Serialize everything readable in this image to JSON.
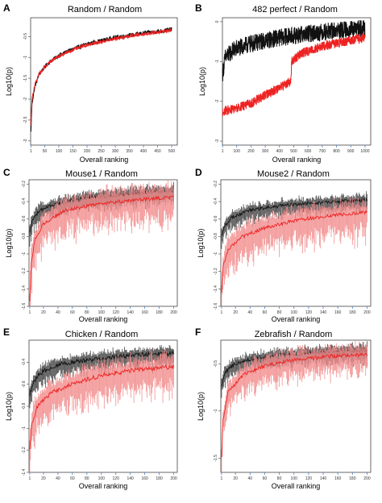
{
  "colors": {
    "random_series": "#111111",
    "query_series": "#ee2222",
    "query_band": "#f28a8a",
    "random_band": "#4a4a4a",
    "axis_tick_blue": "#4a7fd0"
  },
  "chart_data": [
    {
      "panel": "A",
      "type": "line",
      "title": "Random / Random",
      "xlabel": "Overall ranking",
      "ylabel": "Log10(p)",
      "xlim": [
        0,
        520
      ],
      "ylim": [
        -3.1,
        -0.05
      ],
      "xticks": [
        1,
        50,
        100,
        150,
        200,
        250,
        300,
        350,
        400,
        450,
        500
      ],
      "yticks": [
        -3,
        -2.5,
        -2,
        -1.5,
        -1,
        -0.5
      ],
      "ytick_labels": [
        "-3",
        "-2.5",
        "-2",
        "-1.5",
        "-1",
        "-0.5"
      ],
      "n": 500,
      "series": [
        {
          "role": "random",
          "values": [
            {
              "x": 1,
              "y": -2.8
            },
            {
              "x": 5,
              "y": -2.1
            },
            {
              "x": 15,
              "y": -1.7
            },
            {
              "x": 30,
              "y": -1.4
            },
            {
              "x": 60,
              "y": -1.15
            },
            {
              "x": 100,
              "y": -0.95
            },
            {
              "x": 150,
              "y": -0.8
            },
            {
              "x": 200,
              "y": -0.68
            },
            {
              "x": 300,
              "y": -0.52
            },
            {
              "x": 400,
              "y": -0.42
            },
            {
              "x": 500,
              "y": -0.33
            }
          ],
          "noise": 0.05
        },
        {
          "role": "query",
          "values": [
            {
              "x": 1,
              "y": -2.6
            },
            {
              "x": 5,
              "y": -2.0
            },
            {
              "x": 15,
              "y": -1.65
            },
            {
              "x": 30,
              "y": -1.4
            },
            {
              "x": 60,
              "y": -1.15
            },
            {
              "x": 100,
              "y": -0.97
            },
            {
              "x": 150,
              "y": -0.82
            },
            {
              "x": 200,
              "y": -0.7
            },
            {
              "x": 300,
              "y": -0.55
            },
            {
              "x": 400,
              "y": -0.44
            },
            {
              "x": 500,
              "y": -0.35
            }
          ],
          "noise": 0.04
        }
      ]
    },
    {
      "panel": "B",
      "type": "line",
      "title": "482 perfect / Random",
      "xlabel": "Overall ranking",
      "ylabel": "Log10(p)",
      "xlim": [
        0,
        1040
      ],
      "ylim": [
        -3.1,
        0.1
      ],
      "xticks": [
        1,
        100,
        200,
        300,
        400,
        500,
        600,
        700,
        800,
        900,
        1000
      ],
      "yticks": [
        -3,
        -2,
        -1,
        0
      ],
      "ytick_labels": [
        "-3",
        "-2",
        "-1",
        "0"
      ],
      "n": 1000,
      "series": [
        {
          "role": "random",
          "values": [
            {
              "x": 1,
              "y": -1.3
            },
            {
              "x": 20,
              "y": -0.9
            },
            {
              "x": 80,
              "y": -0.7
            },
            {
              "x": 200,
              "y": -0.55
            },
            {
              "x": 400,
              "y": -0.4
            },
            {
              "x": 600,
              "y": -0.3
            },
            {
              "x": 800,
              "y": -0.22
            },
            {
              "x": 1000,
              "y": -0.17
            }
          ],
          "noise": 0.22
        },
        {
          "role": "query",
          "values": [
            {
              "x": 1,
              "y": -2.25
            },
            {
              "x": 100,
              "y": -2.18
            },
            {
              "x": 200,
              "y": -2.05
            },
            {
              "x": 300,
              "y": -1.85
            },
            {
              "x": 400,
              "y": -1.65
            },
            {
              "x": 480,
              "y": -1.5
            },
            {
              "x": 485,
              "y": -1.0
            },
            {
              "x": 550,
              "y": -0.8
            },
            {
              "x": 700,
              "y": -0.62
            },
            {
              "x": 850,
              "y": -0.5
            },
            {
              "x": 1000,
              "y": -0.4
            }
          ],
          "noise": 0.12
        }
      ]
    },
    {
      "panel": "C",
      "type": "line",
      "title": "Mouse1 / Random",
      "xlabel": "Overall ranking",
      "ylabel": "Log10(p)",
      "xlim": [
        0,
        205
      ],
      "ylim": [
        -1.6,
        -0.15
      ],
      "xticks": [
        1,
        20,
        40,
        60,
        80,
        100,
        120,
        140,
        160,
        180,
        200
      ],
      "yticks": [
        -1.6,
        -1.4,
        -1.2,
        -1.0,
        -0.8,
        -0.6,
        -0.4,
        -0.2
      ],
      "ytick_labels": [
        "-1.6",
        "-1.4",
        "-1.2",
        "-1",
        "-0.8",
        "-0.6",
        "-0.4",
        "-0.2"
      ],
      "n": 200,
      "bands": true,
      "series": [
        {
          "role": "random",
          "values": [
            {
              "x": 1,
              "y": -0.75
            },
            {
              "x": 5,
              "y": -0.6
            },
            {
              "x": 15,
              "y": -0.5
            },
            {
              "x": 40,
              "y": -0.42
            },
            {
              "x": 80,
              "y": -0.36
            },
            {
              "x": 120,
              "y": -0.33
            },
            {
              "x": 160,
              "y": -0.3
            },
            {
              "x": 200,
              "y": -0.28
            }
          ],
          "spread": 0.15
        },
        {
          "role": "query",
          "values": [
            {
              "x": 1,
              "y": -1.55
            },
            {
              "x": 3,
              "y": -1.1
            },
            {
              "x": 8,
              "y": -0.85
            },
            {
              "x": 20,
              "y": -0.65
            },
            {
              "x": 50,
              "y": -0.5
            },
            {
              "x": 100,
              "y": -0.42
            },
            {
              "x": 150,
              "y": -0.38
            },
            {
              "x": 200,
              "y": -0.35
            }
          ],
          "spread": 0.3
        }
      ]
    },
    {
      "panel": "D",
      "type": "line",
      "title": "Mouse2 / Random",
      "xlabel": "Overall ranking",
      "ylabel": "Log10(p)",
      "xlim": [
        0,
        205
      ],
      "ylim": [
        -1.6,
        -0.15
      ],
      "xticks": [
        1,
        20,
        40,
        60,
        80,
        100,
        120,
        140,
        160,
        180,
        200
      ],
      "yticks": [
        -1.6,
        -1.4,
        -1.2,
        -1.0,
        -0.8,
        -0.6,
        -0.4,
        -0.2
      ],
      "ytick_labels": [
        "-1.6",
        "-1.4",
        "-1.2",
        "-1",
        "-0.8",
        "-0.6",
        "-0.4",
        "-0.2"
      ],
      "n": 200,
      "bands": true,
      "series": [
        {
          "role": "random",
          "values": [
            {
              "x": 1,
              "y": -0.8
            },
            {
              "x": 5,
              "y": -0.68
            },
            {
              "x": 15,
              "y": -0.58
            },
            {
              "x": 40,
              "y": -0.5
            },
            {
              "x": 80,
              "y": -0.45
            },
            {
              "x": 120,
              "y": -0.42
            },
            {
              "x": 160,
              "y": -0.4
            },
            {
              "x": 200,
              "y": -0.38
            }
          ],
          "spread": 0.14
        },
        {
          "role": "query",
          "values": [
            {
              "x": 1,
              "y": -1.45
            },
            {
              "x": 3,
              "y": -1.15
            },
            {
              "x": 10,
              "y": -0.95
            },
            {
              "x": 30,
              "y": -0.8
            },
            {
              "x": 60,
              "y": -0.7
            },
            {
              "x": 100,
              "y": -0.62
            },
            {
              "x": 150,
              "y": -0.56
            },
            {
              "x": 200,
              "y": -0.52
            }
          ],
          "spread": 0.3
        }
      ]
    },
    {
      "panel": "E",
      "type": "line",
      "title": "Chicken / Random",
      "xlabel": "Overall ranking",
      "ylabel": "Log10(p)",
      "xlim": [
        0,
        205
      ],
      "ylim": [
        -1.4,
        -0.2
      ],
      "xticks": [
        1,
        20,
        40,
        60,
        80,
        100,
        120,
        140,
        160,
        180,
        200
      ],
      "yticks": [
        -1.4,
        -1.2,
        -1.0,
        -0.8,
        -0.6,
        -0.4
      ],
      "ytick_labels": [
        "-1.4",
        "-1.2",
        "-1",
        "-0.8",
        "-0.6",
        "-0.4"
      ],
      "n": 200,
      "bands": true,
      "series": [
        {
          "role": "random",
          "values": [
            {
              "x": 1,
              "y": -0.7
            },
            {
              "x": 5,
              "y": -0.6
            },
            {
              "x": 15,
              "y": -0.5
            },
            {
              "x": 40,
              "y": -0.42
            },
            {
              "x": 80,
              "y": -0.38
            },
            {
              "x": 120,
              "y": -0.35
            },
            {
              "x": 160,
              "y": -0.33
            },
            {
              "x": 200,
              "y": -0.32
            }
          ],
          "spread": 0.13
        },
        {
          "role": "query",
          "values": [
            {
              "x": 1,
              "y": -1.2
            },
            {
              "x": 4,
              "y": -0.95
            },
            {
              "x": 12,
              "y": -0.8
            },
            {
              "x": 30,
              "y": -0.68
            },
            {
              "x": 60,
              "y": -0.6
            },
            {
              "x": 100,
              "y": -0.52
            },
            {
              "x": 150,
              "y": -0.47
            },
            {
              "x": 200,
              "y": -0.44
            }
          ],
          "spread": 0.25
        }
      ]
    },
    {
      "panel": "F",
      "type": "line",
      "title": "Zebrafish / Random",
      "xlabel": "Overall ranking",
      "ylabel": "Log10(p)",
      "xlim": [
        0,
        205
      ],
      "ylim": [
        -1.65,
        -0.25
      ],
      "xticks": [
        1,
        20,
        40,
        60,
        80,
        100,
        120,
        140,
        160,
        180,
        200
      ],
      "yticks": [
        -1.5,
        -1.0,
        -0.5
      ],
      "ytick_labels": [
        "-1.5",
        "-1",
        "-0.5"
      ],
      "n": 200,
      "bands": true,
      "series": [
        {
          "role": "random",
          "values": [
            {
              "x": 1,
              "y": -0.75
            },
            {
              "x": 5,
              "y": -0.6
            },
            {
              "x": 15,
              "y": -0.52
            },
            {
              "x": 40,
              "y": -0.45
            },
            {
              "x": 80,
              "y": -0.41
            },
            {
              "x": 120,
              "y": -0.39
            },
            {
              "x": 160,
              "y": -0.37
            },
            {
              "x": 200,
              "y": -0.36
            }
          ],
          "spread": 0.14
        },
        {
          "role": "query",
          "values": [
            {
              "x": 1,
              "y": -1.5
            },
            {
              "x": 3,
              "y": -1.1
            },
            {
              "x": 10,
              "y": -0.8
            },
            {
              "x": 30,
              "y": -0.62
            },
            {
              "x": 60,
              "y": -0.52
            },
            {
              "x": 100,
              "y": -0.46
            },
            {
              "x": 150,
              "y": -0.42
            },
            {
              "x": 200,
              "y": -0.4
            }
          ],
          "spread": 0.22
        }
      ]
    }
  ]
}
